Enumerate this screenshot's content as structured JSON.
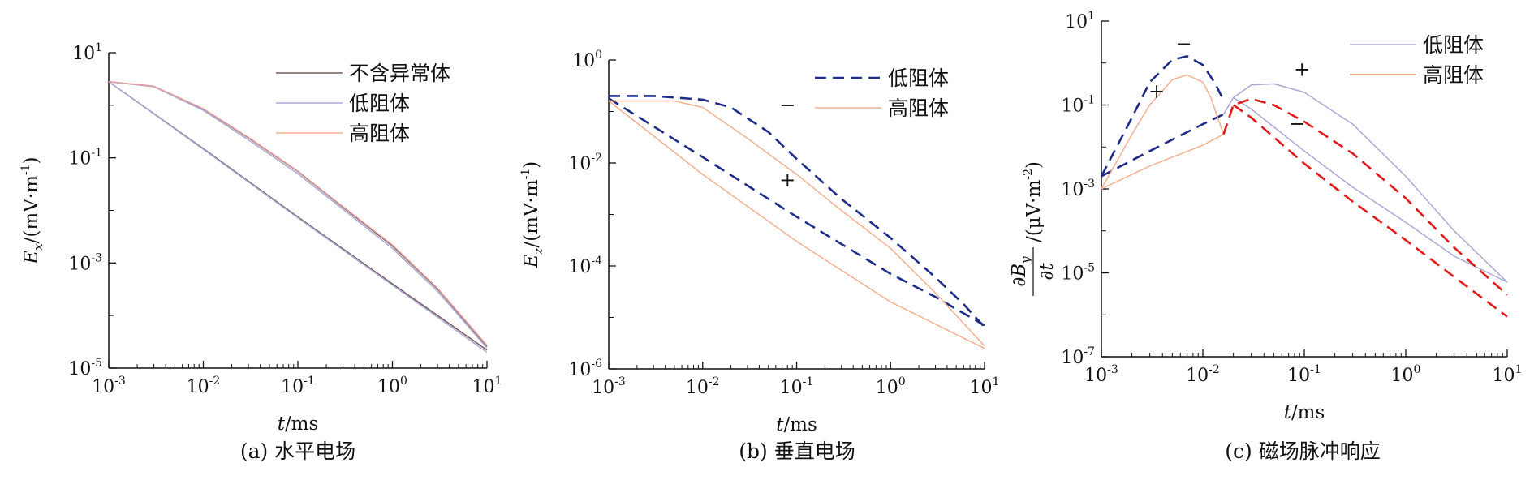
{
  "chart_data": [
    {
      "type": "line",
      "panel": "a",
      "caption": "(a) 水平电场",
      "ylabel": {
        "base": "E",
        "sub": "x",
        "unit": "/(mV·m",
        "unit_sup": "-1",
        "close": ")"
      },
      "xlabel": {
        "var": "t",
        "unit": "/ms"
      },
      "x_scale": "log",
      "y_scale": "log",
      "xlim": [
        0.001,
        10
      ],
      "ylim": [
        1e-05,
        10
      ],
      "xticks": [
        {
          "v": 0.001,
          "base": "10",
          "exp": "-3"
        },
        {
          "v": 0.01,
          "base": "10",
          "exp": "-2"
        },
        {
          "v": 0.1,
          "base": "10",
          "exp": "-1"
        },
        {
          "v": 1,
          "base": "10",
          "exp": "0"
        },
        {
          "v": 10,
          "base": "10",
          "exp": "1"
        }
      ],
      "yticks": [
        {
          "v": 1e-05,
          "base": "10",
          "exp": "-5"
        },
        {
          "v": 0.001,
          "base": "10",
          "exp": "-3"
        },
        {
          "v": 0.1,
          "base": "10",
          "exp": "-1"
        },
        {
          "v": 10,
          "base": "10",
          "exp": "1"
        }
      ],
      "legend_position": "top-right",
      "legend": [
        {
          "label": "不含异常体",
          "color": "#7a5a5a",
          "dash": false
        },
        {
          "label": "低阻体",
          "color": "#a9a9d6",
          "dash": false
        },
        {
          "label": "高阻体",
          "color": "#f4b08e",
          "dash": false
        }
      ],
      "series": [
        {
          "name": "不含异常体",
          "color": "#7a5a5a",
          "dash": false,
          "x": [
            0.001,
            0.003,
            0.01,
            0.03,
            0.1,
            0.3,
            1,
            3,
            10
          ],
          "y": [
            2.8,
            2.3,
            0.85,
            0.24,
            0.055,
            0.0115,
            0.0021,
            0.00032,
            2.6e-05
          ]
        },
        {
          "name": "不含异常体",
          "color": "#7a5a5a",
          "dash": false,
          "x": [
            0.001,
            0.01,
            0.1,
            1,
            10
          ],
          "y": [
            2.8,
            0.15,
            0.0075,
            0.0004,
            2.2e-05
          ]
        },
        {
          "name": "低阻体",
          "color": "#a9a9d6",
          "dash": false,
          "x": [
            0.001,
            0.003,
            0.01,
            0.03,
            0.1,
            0.3,
            1,
            3,
            10
          ],
          "y": [
            2.8,
            2.25,
            0.8,
            0.22,
            0.05,
            0.0105,
            0.0019,
            0.00029,
            2.4e-05
          ]
        },
        {
          "name": "低阻体",
          "color": "#a9a9d6",
          "dash": false,
          "x": [
            0.001,
            0.01,
            0.1,
            1,
            10
          ],
          "y": [
            2.8,
            0.145,
            0.0072,
            0.00038,
            2e-05
          ]
        },
        {
          "name": "高阻体",
          "color": "#e8a0a0",
          "dash": false,
          "x": [
            0.001,
            0.003,
            0.01,
            0.03,
            0.1,
            0.3,
            1,
            3,
            10
          ],
          "y": [
            2.8,
            2.3,
            0.86,
            0.245,
            0.056,
            0.0118,
            0.0022,
            0.00033,
            2.7e-05
          ]
        }
      ]
    },
    {
      "type": "line",
      "panel": "b",
      "caption": "(b) 垂直电场",
      "ylabel": {
        "base": "E",
        "sub": "z",
        "unit": "/(mV·m",
        "unit_sup": "-1",
        "close": ")"
      },
      "xlabel": {
        "var": "t",
        "unit": "/ms"
      },
      "x_scale": "log",
      "y_scale": "log",
      "xlim": [
        0.001,
        10
      ],
      "ylim": [
        1e-06,
        1
      ],
      "xticks": [
        {
          "v": 0.001,
          "base": "10",
          "exp": "-3"
        },
        {
          "v": 0.01,
          "base": "10",
          "exp": "-2"
        },
        {
          "v": 0.1,
          "base": "10",
          "exp": "-1"
        },
        {
          "v": 1,
          "base": "10",
          "exp": "0"
        },
        {
          "v": 10,
          "base": "10",
          "exp": "1"
        }
      ],
      "yticks": [
        {
          "v": 1e-06,
          "base": "10",
          "exp": "-6"
        },
        {
          "v": 0.0001,
          "base": "10",
          "exp": "-4"
        },
        {
          "v": 0.01,
          "base": "10",
          "exp": "-2"
        },
        {
          "v": 1,
          "base": "10",
          "exp": "0"
        }
      ],
      "legend_position": "top-right",
      "legend": [
        {
          "label": "低阻体",
          "color": "#1f2d8a",
          "dash": true
        },
        {
          "label": "高阻体",
          "color": "#f4b08e",
          "dash": false
        }
      ],
      "annotations": [
        {
          "text": "−",
          "x": 0.08,
          "y": 0.1
        },
        {
          "text": "+",
          "x": 0.08,
          "y": 0.0035
        }
      ],
      "series": [
        {
          "name": "低阻体",
          "color": "#1f2d8a",
          "dash": true,
          "x": [
            0.001,
            0.003,
            0.01,
            0.02,
            0.05,
            0.1,
            0.3,
            1,
            3,
            6,
            10
          ],
          "y": [
            0.2,
            0.2,
            0.17,
            0.12,
            0.04,
            0.012,
            0.002,
            0.00035,
            6e-05,
            1.8e-05,
            6.5e-06
          ]
        },
        {
          "name": "低阻体",
          "color": "#1f2d8a",
          "dash": true,
          "x": [
            0.001,
            0.01,
            0.1,
            1,
            3,
            10
          ],
          "y": [
            0.18,
            0.013,
            0.0009,
            7e-05,
            2.5e-05,
            7e-06
          ]
        },
        {
          "name": "高阻体",
          "color": "#f4b08e",
          "dash": false,
          "x": [
            0.001,
            0.005,
            0.01,
            0.03,
            0.1,
            0.3,
            1,
            3,
            10
          ],
          "y": [
            0.16,
            0.16,
            0.12,
            0.03,
            0.006,
            0.0012,
            0.00022,
            3e-05,
            2.8e-06
          ]
        },
        {
          "name": "高阻体",
          "color": "#f4b08e",
          "dash": false,
          "x": [
            0.001,
            0.01,
            0.1,
            1,
            10
          ],
          "y": [
            0.16,
            0.006,
            0.0003,
            2e-05,
            2.5e-06
          ]
        }
      ]
    },
    {
      "type": "line",
      "panel": "c",
      "caption": "(c) 磁场脉冲响应",
      "ylabel": {
        "num": "∂B",
        "num_sub": "y",
        "den": "∂t",
        "unit": "/(μV·m",
        "unit_sup": "-2",
        "close": ")"
      },
      "xlabel": {
        "var": "t",
        "unit": "/ms"
      },
      "x_scale": "log",
      "y_scale": "log",
      "xlim": [
        0.001,
        10
      ],
      "ylim": [
        1e-07,
        10
      ],
      "xticks": [
        {
          "v": 0.001,
          "base": "10",
          "exp": "-3"
        },
        {
          "v": 0.01,
          "base": "10",
          "exp": "-2"
        },
        {
          "v": 0.1,
          "base": "10",
          "exp": "-1"
        },
        {
          "v": 1,
          "base": "10",
          "exp": "0"
        },
        {
          "v": 10,
          "base": "10",
          "exp": "1"
        }
      ],
      "yticks": [
        {
          "v": 1e-07,
          "base": "10",
          "exp": "-7"
        },
        {
          "v": 1e-05,
          "base": "10",
          "exp": "-5"
        },
        {
          "v": 0.001,
          "base": "10",
          "exp": "-3"
        },
        {
          "v": 0.1,
          "base": "10",
          "exp": "-1"
        },
        {
          "v": 10,
          "base": "10",
          "exp": "1"
        }
      ],
      "legend_position": "top-right",
      "legend": [
        {
          "label": "低阻体",
          "color": "#a9a9d6",
          "dash": false
        },
        {
          "label": "高阻体",
          "color": "#f08a66",
          "dash": false
        }
      ],
      "annotations": [
        {
          "text": "−",
          "x": 0.0065,
          "y": 2.0
        },
        {
          "text": "+",
          "x": 0.0035,
          "y": 0.15
        },
        {
          "text": "+",
          "x": 0.095,
          "y": 0.5
        },
        {
          "text": "−",
          "x": 0.085,
          "y": 0.025
        }
      ],
      "series": [
        {
          "name": "低阻体",
          "color": "#1f2d8a",
          "dash": true,
          "x": [
            0.001,
            0.002,
            0.003,
            0.005,
            0.007,
            0.01,
            0.013,
            0.016
          ],
          "y": [
            0.002,
            0.05,
            0.35,
            1.2,
            1.45,
            0.9,
            0.35,
            0.13
          ]
        },
        {
          "name": "低阻体",
          "color": "#1f2d8a",
          "dash": true,
          "x": [
            0.001,
            0.003,
            0.01,
            0.016
          ],
          "y": [
            0.002,
            0.008,
            0.035,
            0.06
          ]
        },
        {
          "name": "高阻体",
          "color": "#f4b08e",
          "dash": false,
          "x": [
            0.001,
            0.002,
            0.003,
            0.005,
            0.007,
            0.01,
            0.012,
            0.014,
            0.016
          ],
          "y": [
            0.001,
            0.02,
            0.1,
            0.4,
            0.52,
            0.35,
            0.15,
            0.05,
            0.02
          ]
        },
        {
          "name": "高阻体",
          "color": "#f4b08e",
          "dash": false,
          "x": [
            0.001,
            0.003,
            0.01,
            0.016
          ],
          "y": [
            0.001,
            0.0035,
            0.011,
            0.02
          ]
        },
        {
          "name": "低阻体",
          "color": "#a9a9d6",
          "dash": false,
          "x": [
            0.016,
            0.02,
            0.03,
            0.05,
            0.1,
            0.3,
            1,
            3,
            10
          ],
          "y": [
            0.06,
            0.15,
            0.3,
            0.32,
            0.2,
            0.035,
            0.002,
            0.0001,
            6e-06
          ]
        },
        {
          "name": "低阻体",
          "color": "#a9a9d6",
          "dash": false,
          "x": [
            0.02,
            0.03,
            0.1,
            0.3,
            1,
            3,
            10
          ],
          "y": [
            0.15,
            0.08,
            0.008,
            0.0011,
            0.00016,
            2.5e-05,
            6e-06
          ]
        },
        {
          "name": "高阻体",
          "color": "#e01b1b",
          "dash": true,
          "x": [
            0.016,
            0.02,
            0.03,
            0.05,
            0.1,
            0.3,
            1,
            3,
            10
          ],
          "y": [
            0.02,
            0.1,
            0.14,
            0.1,
            0.04,
            0.007,
            0.0006,
            4e-05,
            3e-06
          ]
        },
        {
          "name": "高阻体",
          "color": "#e01b1b",
          "dash": true,
          "x": [
            0.02,
            0.03,
            0.1,
            0.3,
            1,
            3,
            10
          ],
          "y": [
            0.1,
            0.05,
            0.004,
            0.0005,
            6e-05,
            8e-06,
            9e-07
          ]
        }
      ]
    }
  ]
}
